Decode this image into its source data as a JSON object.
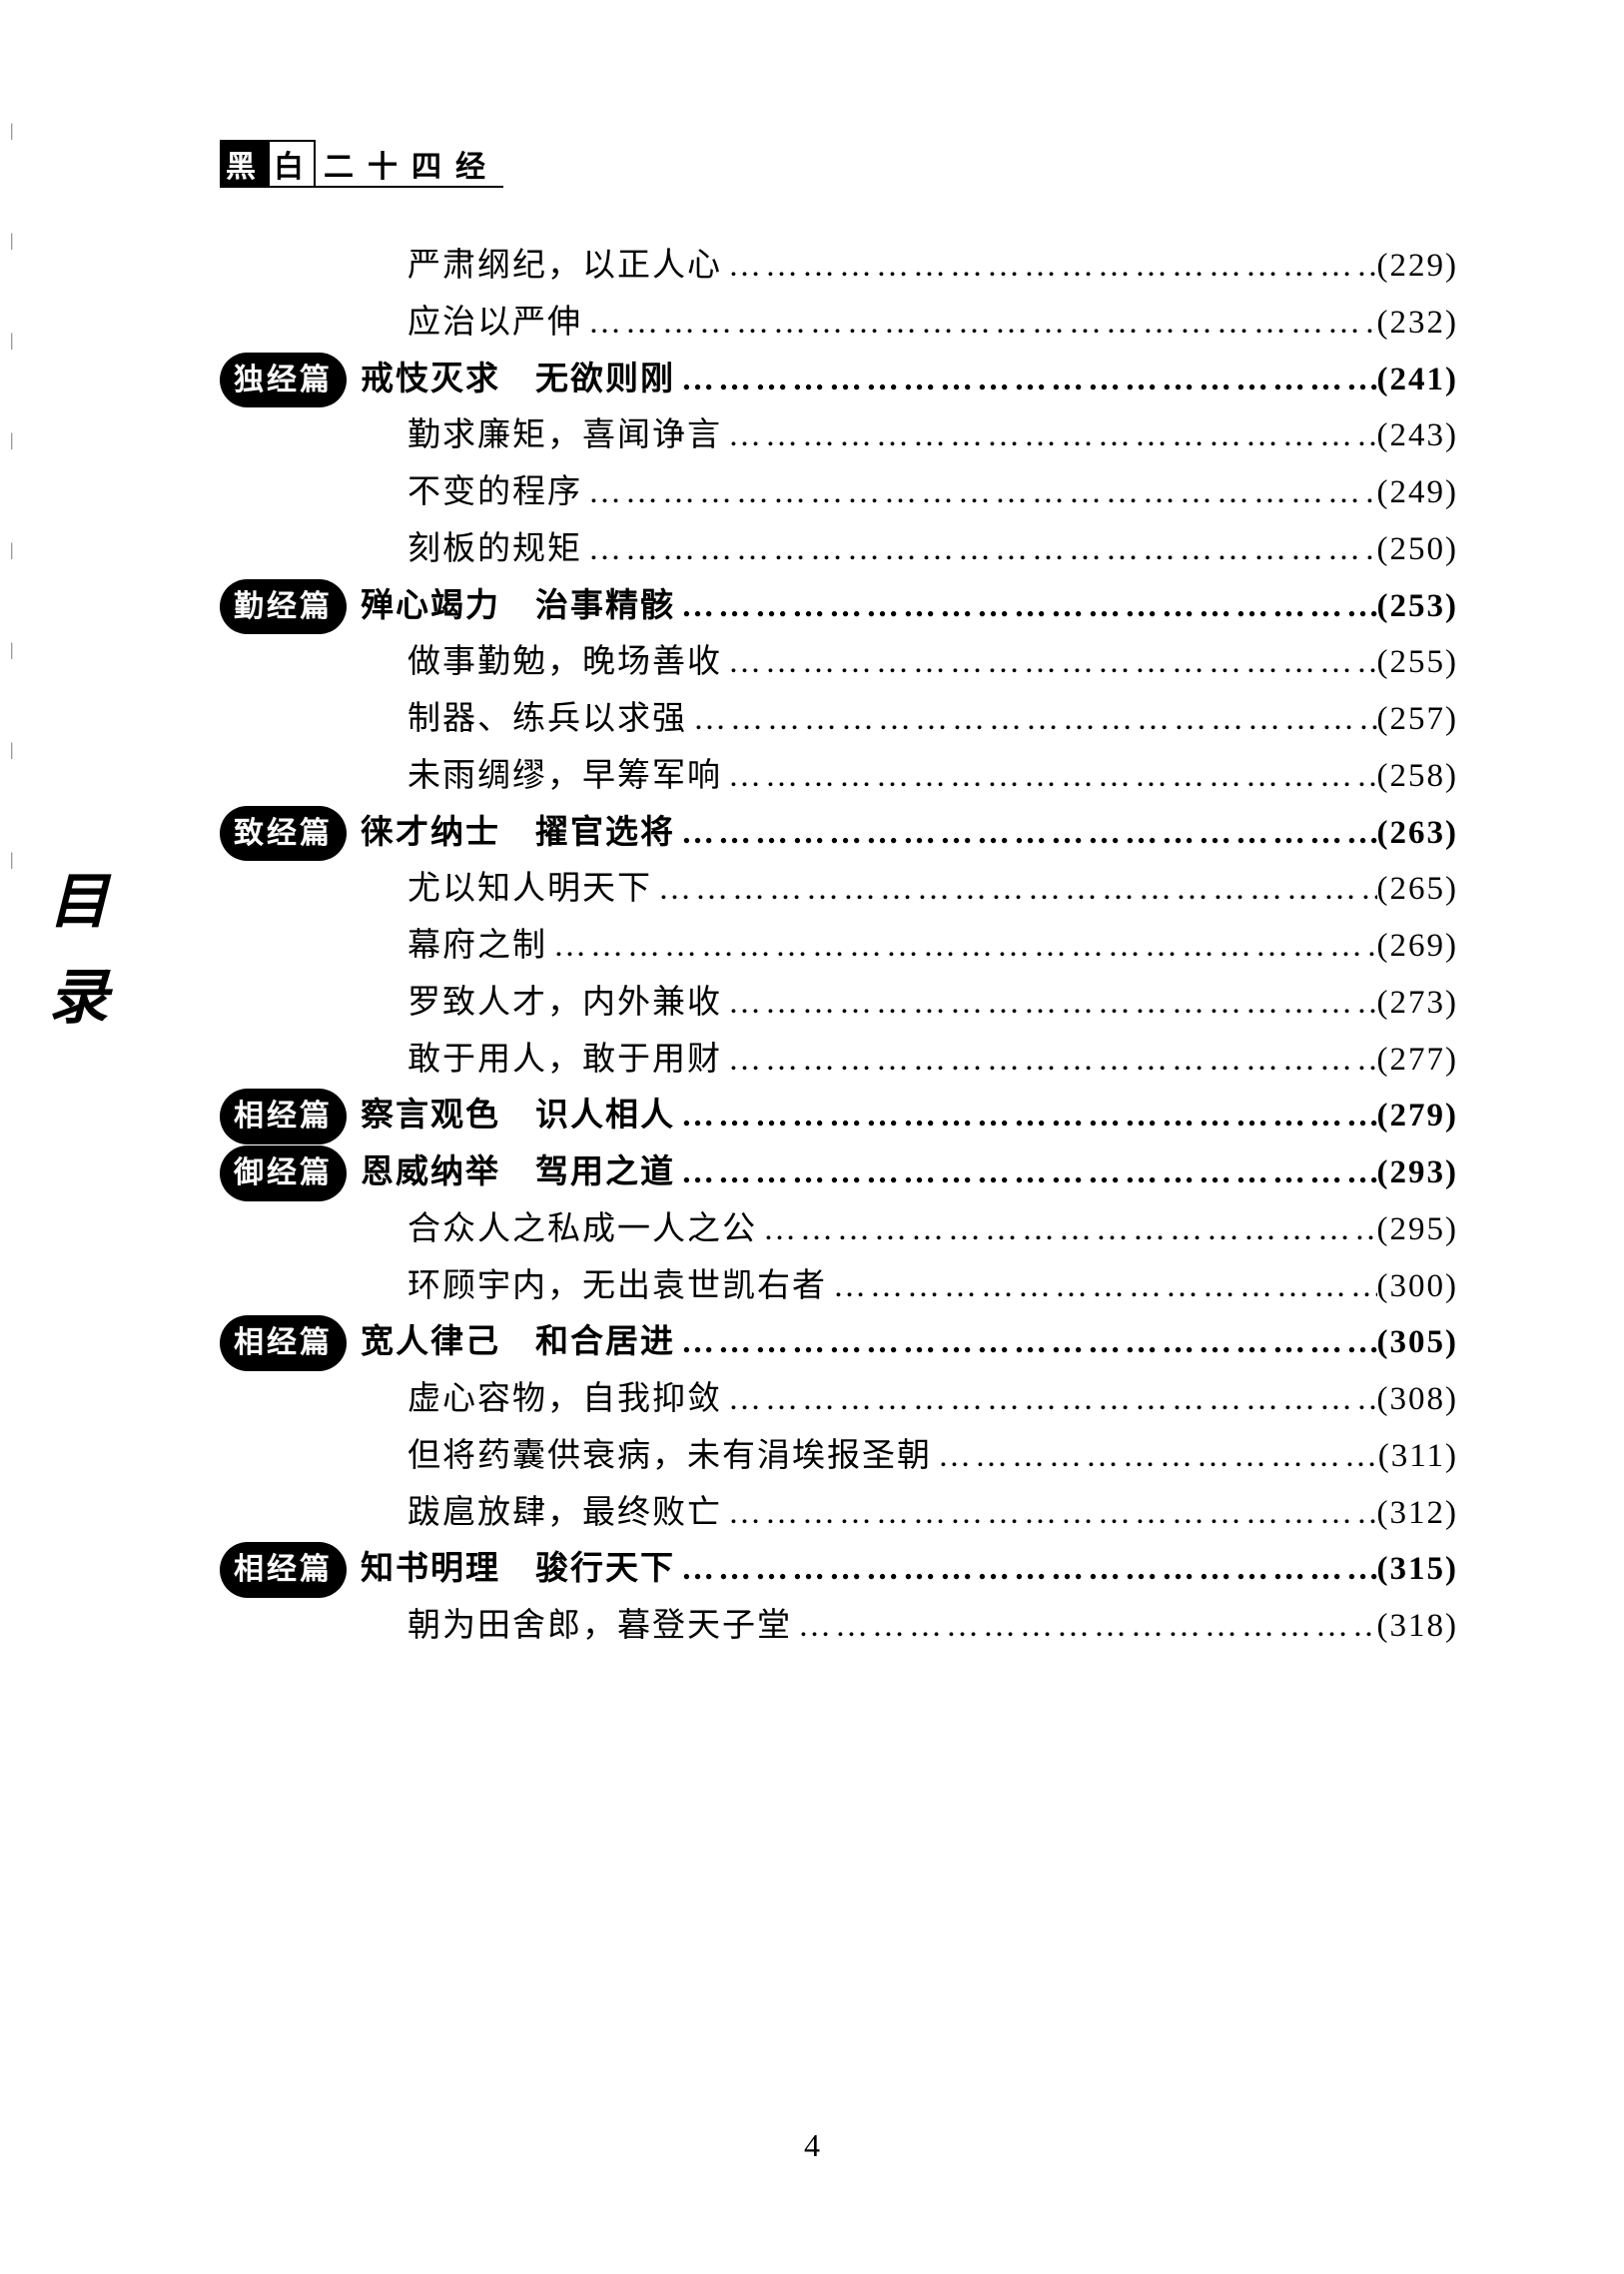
{
  "header": {
    "black": "黑",
    "white": "白",
    "rest": "二十四经"
  },
  "side_label": "目录",
  "footer_page": "4",
  "toc": [
    {
      "type": "sub",
      "text": "严肃纲纪，以正人心",
      "page": "(229)"
    },
    {
      "type": "sub",
      "text": "应治以严伸",
      "page": "(232)"
    },
    {
      "type": "section",
      "badge": "独经篇",
      "text": "戒忮灭求　无欲则刚",
      "page": "(241)"
    },
    {
      "type": "sub",
      "text": "勤求廉矩，喜闻诤言",
      "page": "(243)"
    },
    {
      "type": "sub",
      "text": "不变的程序",
      "page": "(249)"
    },
    {
      "type": "sub",
      "text": "刻板的规矩",
      "page": "(250)"
    },
    {
      "type": "section",
      "badge": "勤经篇",
      "text": "殚心竭力　治事精骸",
      "page": "(253)"
    },
    {
      "type": "sub",
      "text": "做事勤勉，晚场善收",
      "page": "(255)"
    },
    {
      "type": "sub",
      "text": "制器、练兵以求强",
      "page": "(257)"
    },
    {
      "type": "sub",
      "text": "未雨绸缪，早筹军响",
      "page": "(258)"
    },
    {
      "type": "section",
      "badge": "致经篇",
      "text": "徕才纳士　擢官选将",
      "page": "(263)"
    },
    {
      "type": "sub",
      "text": "尤以知人明天下",
      "page": "(265)"
    },
    {
      "type": "sub",
      "text": "幕府之制",
      "page": "(269)"
    },
    {
      "type": "sub",
      "text": "罗致人才，内外兼收",
      "page": "(273)"
    },
    {
      "type": "sub",
      "text": "敢于用人，敢于用财",
      "page": "(277)"
    },
    {
      "type": "section",
      "badge": "相经篇",
      "text": "察言观色　识人相人",
      "page": "(279)"
    },
    {
      "type": "section",
      "badge": "御经篇",
      "text": "恩威纳举　驾用之道",
      "page": "(293)"
    },
    {
      "type": "sub",
      "text": "合众人之私成一人之公",
      "page": "(295)"
    },
    {
      "type": "sub",
      "text": "环顾宇内，无出袁世凯右者",
      "page": "(300)"
    },
    {
      "type": "section",
      "badge": "相经篇",
      "text": "宽人律己　和合居进",
      "page": "(305)"
    },
    {
      "type": "sub",
      "text": "虚心容物，自我抑敛",
      "page": "(308)"
    },
    {
      "type": "sub",
      "text": "但将药囊供衰病，未有涓埃报圣朝",
      "page": "(311)"
    },
    {
      "type": "sub",
      "text": "跋扈放肆，最终败亡",
      "page": "(312)"
    },
    {
      "type": "section",
      "badge": "相经篇",
      "text": "知书明理　骏行天下",
      "page": "(315)"
    },
    {
      "type": "sub",
      "text": "朝为田舍郎，暮登天子堂",
      "page": "(318)"
    }
  ],
  "colors": {
    "text": "#000000",
    "bg": "#ffffff"
  }
}
